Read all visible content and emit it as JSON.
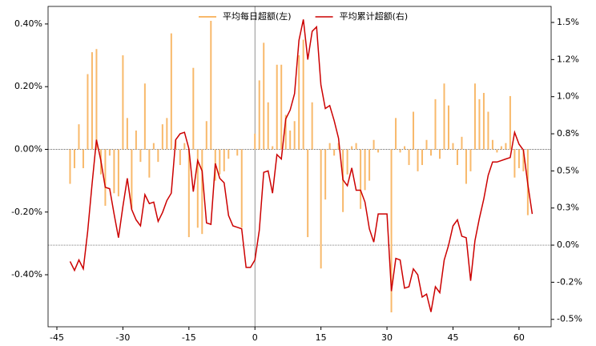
{
  "chart_data": {
    "type": "bar_line",
    "x": [
      -42,
      -41,
      -40,
      -39,
      -38,
      -37,
      -36,
      -35,
      -34,
      -33,
      -32,
      -31,
      -30,
      -29,
      -28,
      -27,
      -26,
      -25,
      -24,
      -23,
      -22,
      -21,
      -20,
      -19,
      -18,
      -17,
      -16,
      -15,
      -14,
      -13,
      -12,
      -11,
      -10,
      -9,
      -8,
      -7,
      -6,
      -5,
      -4,
      -3,
      -2,
      -1,
      0,
      1,
      2,
      3,
      4,
      5,
      6,
      7,
      8,
      9,
      10,
      11,
      12,
      13,
      14,
      15,
      16,
      17,
      18,
      19,
      20,
      21,
      22,
      23,
      24,
      25,
      26,
      27,
      28,
      29,
      30,
      31,
      32,
      33,
      34,
      35,
      36,
      37,
      38,
      39,
      40,
      41,
      42,
      43,
      44,
      45,
      46,
      47,
      48,
      49,
      50,
      51,
      52,
      53,
      54,
      55,
      56,
      57,
      58,
      59,
      60,
      61,
      62,
      63
    ],
    "series": [
      {
        "name": "平均每日超额(左)",
        "color": "#f8b96b",
        "kind": "bar",
        "axis": "y",
        "values": [
          -0.11,
          -0.06,
          0.08,
          -0.06,
          0.24,
          0.31,
          0.32,
          -0.08,
          -0.18,
          -0.02,
          -0.14,
          -0.15,
          0.3,
          0.1,
          -0.19,
          0.06,
          -0.04,
          0.21,
          -0.09,
          0.02,
          -0.04,
          0.08,
          0.1,
          0.37,
          0.03,
          -0.05,
          0.02,
          -0.28,
          0.26,
          -0.25,
          -0.27,
          0.09,
          0.41,
          -0.1,
          -0.08,
          -0.07,
          -0.03,
          0.0,
          -0.02,
          -0.25,
          0.0,
          0.0,
          0.05,
          0.22,
          0.34,
          0.15,
          0.01,
          0.27,
          0.27,
          0.11,
          0.06,
          0.09,
          0.3,
          0.35,
          -0.28,
          0.15,
          0.0,
          -0.38,
          -0.16,
          0.02,
          -0.02,
          0.02,
          -0.2,
          -0.08,
          0.01,
          0.02,
          -0.19,
          -0.13,
          -0.1,
          0.03,
          -0.01,
          0.0,
          0.0,
          -0.52,
          0.1,
          -0.01,
          0.01,
          -0.05,
          0.12,
          -0.07,
          -0.05,
          0.03,
          -0.02,
          0.16,
          -0.03,
          0.21,
          0.14,
          0.02,
          -0.05,
          0.04,
          -0.11,
          -0.07,
          0.21,
          0.16,
          0.18,
          0.12,
          0.03,
          -0.01,
          0.01,
          0.02,
          0.17,
          -0.09,
          -0.06,
          -0.07,
          -0.21,
          0.0
        ]
      },
      {
        "name": "平均累计超额(右)",
        "color": "#cc0000",
        "kind": "line",
        "axis": "y2",
        "values": [
          -0.11,
          -0.17,
          -0.1,
          -0.16,
          0.09,
          0.41,
          0.71,
          0.57,
          0.39,
          0.38,
          0.21,
          0.05,
          0.26,
          0.45,
          0.24,
          0.17,
          0.13,
          0.34,
          0.28,
          0.29,
          0.16,
          0.22,
          0.3,
          0.35,
          0.71,
          0.75,
          0.76,
          0.65,
          0.36,
          0.57,
          0.5,
          0.15,
          0.14,
          0.55,
          0.45,
          0.42,
          0.2,
          0.13,
          0.12,
          0.11,
          -0.15,
          -0.15,
          -0.1,
          0.1,
          0.49,
          0.5,
          0.35,
          0.61,
          0.58,
          0.85,
          0.91,
          1.02,
          1.38,
          1.52,
          1.25,
          1.44,
          1.47,
          1.08,
          0.92,
          0.94,
          0.84,
          0.72,
          0.44,
          0.4,
          0.52,
          0.37,
          0.37,
          0.29,
          0.11,
          0.02,
          0.21,
          0.21,
          0.21,
          -0.31,
          -0.09,
          -0.1,
          -0.29,
          -0.28,
          -0.16,
          -0.2,
          -0.35,
          -0.33,
          -0.45,
          -0.28,
          -0.32,
          -0.1,
          0.0,
          0.13,
          0.17,
          0.06,
          0.05,
          -0.24,
          0.03,
          0.18,
          0.31,
          0.47,
          0.56,
          0.56,
          0.57,
          0.58,
          0.59,
          0.76,
          0.68,
          0.64,
          0.41,
          0.21
        ]
      }
    ],
    "xlim": [
      -47,
      67.3
    ],
    "xticks": [
      -45,
      -30,
      -15,
      0,
      15,
      30,
      45,
      60
    ],
    "ylim": [
      -0.566,
      0.456
    ],
    "yticks": [
      {
        "value": -0.4,
        "label": "-0.40%"
      },
      {
        "value": -0.2,
        "label": "-0.20%"
      },
      {
        "value": 0,
        "label": "0.00%"
      },
      {
        "value": 0.2,
        "label": "0.20%"
      },
      {
        "value": 0.4,
        "label": "0.40%"
      }
    ],
    "y2lim": [
      -0.55,
      1.608
    ],
    "y2ticks": [
      {
        "value": -0.5,
        "label": "-0.5%"
      },
      {
        "value": -0.25,
        "label": "-0.2%"
      },
      {
        "value": 0,
        "label": "0.0%"
      },
      {
        "value": 0.25,
        "label": "0.3%"
      },
      {
        "value": 0.5,
        "label": "0.5%"
      },
      {
        "value": 0.75,
        "label": "0.8%"
      },
      {
        "value": 1.0,
        "label": "1.0%"
      },
      {
        "value": 1.25,
        "label": "1.2%"
      },
      {
        "value": 1.5,
        "label": "1.5%"
      }
    ],
    "legend": "upper center"
  }
}
